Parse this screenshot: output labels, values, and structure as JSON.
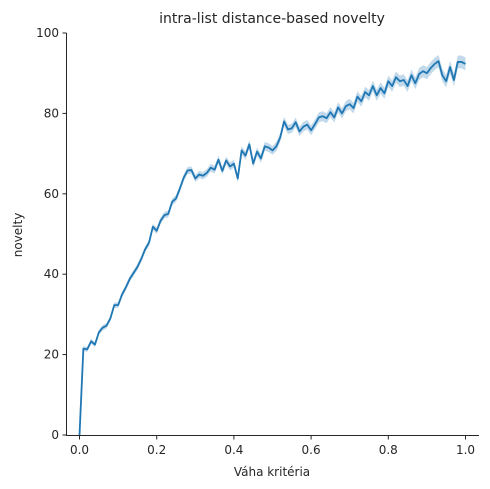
{
  "chart_data": {
    "type": "line",
    "title": "intra-list distance-based novelty",
    "xlabel": "Váha kritéria",
    "ylabel": "novelty",
    "xlim": [
      -0.035,
      1.035
    ],
    "ylim": [
      0,
      100
    ],
    "xticks": [
      "0.0",
      "0.2",
      "0.4",
      "0.6",
      "0.8",
      "1.0"
    ],
    "yticks": [
      "0",
      "20",
      "40",
      "60",
      "80",
      "100"
    ],
    "grid": false,
    "legend": "none",
    "color": "#1f77b4",
    "band_color": "#1f77b4",
    "band_opacity": 0.28,
    "series": [
      {
        "x": [
          0.0,
          0.01,
          0.02,
          0.03,
          0.04,
          0.05,
          0.06,
          0.07,
          0.08,
          0.09,
          0.1,
          0.11,
          0.12,
          0.13,
          0.14,
          0.15,
          0.16,
          0.17,
          0.18,
          0.19,
          0.2,
          0.21,
          0.22,
          0.23,
          0.24,
          0.25,
          0.26,
          0.27,
          0.28,
          0.29,
          0.3,
          0.31,
          0.32,
          0.33,
          0.34,
          0.35,
          0.36,
          0.37,
          0.38,
          0.39,
          0.4,
          0.41,
          0.42,
          0.43,
          0.44,
          0.45,
          0.46,
          0.47,
          0.48,
          0.49,
          0.5,
          0.51,
          0.52,
          0.53,
          0.54,
          0.55,
          0.56,
          0.57,
          0.58,
          0.59,
          0.6,
          0.61,
          0.62,
          0.63,
          0.64,
          0.65,
          0.66,
          0.67,
          0.68,
          0.69,
          0.7,
          0.71,
          0.72,
          0.73,
          0.74,
          0.75,
          0.76,
          0.77,
          0.78,
          0.79,
          0.8,
          0.81,
          0.82,
          0.83,
          0.84,
          0.85,
          0.86,
          0.87,
          0.88,
          0.89,
          0.9,
          0.91,
          0.92,
          0.93,
          0.94,
          0.95,
          0.96,
          0.97,
          0.98,
          0.99,
          1.0
        ],
        "y": [
          0,
          21.5,
          21.3,
          23.3,
          22.5,
          25.5,
          26.7,
          27.2,
          29.0,
          32.3,
          32.3,
          34.9,
          36.7,
          38.8,
          40.3,
          41.8,
          43.8,
          46.2,
          47.8,
          51.8,
          50.8,
          53.3,
          54.7,
          55.0,
          58.0,
          58.8,
          61.3,
          64.0,
          65.8,
          65.9,
          63.8,
          64.8,
          64.5,
          65.2,
          66.5,
          66.0,
          68.5,
          65.7,
          68.3,
          66.8,
          67.5,
          63.8,
          70.8,
          69.5,
          72.3,
          67.5,
          70.5,
          68.8,
          71.8,
          71.5,
          70.8,
          71.8,
          74.0,
          78.0,
          76.0,
          76.3,
          77.8,
          75.5,
          76.7,
          77.2,
          75.8,
          77.3,
          79.0,
          79.3,
          78.8,
          80.3,
          79.0,
          81.5,
          80.0,
          81.8,
          82.3,
          81.3,
          84.2,
          83.0,
          85.3,
          84.5,
          86.8,
          84.5,
          86.3,
          85.0,
          88.0,
          86.8,
          89.0,
          88.0,
          88.3,
          86.8,
          89.5,
          87.5,
          89.8,
          90.5,
          90.0,
          91.3,
          92.3,
          93.0,
          89.5,
          88.0,
          91.5,
          88.3,
          92.8,
          92.8,
          92.3
        ]
      }
    ]
  }
}
